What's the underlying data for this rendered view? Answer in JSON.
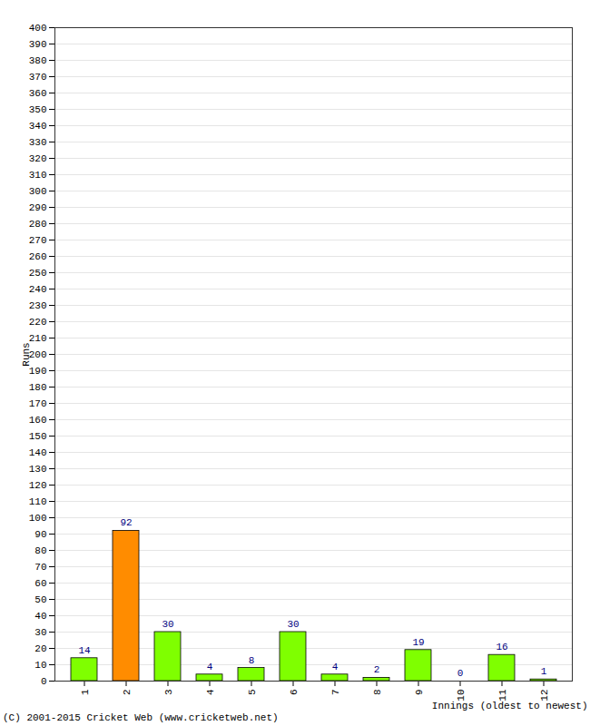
{
  "chart_data": {
    "type": "bar",
    "y_label": "Runs",
    "x_label": "Innings (oldest to newest)",
    "annotations": [
      "(C) 2001-2015 Cricket Web (www.cricketweb.net)"
    ],
    "categories": [
      "1",
      "2",
      "3",
      "4",
      "5",
      "6",
      "7",
      "8",
      "9",
      "10",
      "11",
      "12"
    ],
    "values": [
      14,
      92,
      30,
      4,
      8,
      30,
      4,
      2,
      19,
      0,
      16,
      1
    ],
    "colors": [
      "#7fff00",
      "#ff8c00",
      "#7fff00",
      "#7fff00",
      "#7fff00",
      "#7fff00",
      "#7fff00",
      "#7fff00",
      "#7fff00",
      "#7fff00",
      "#7fff00",
      "#7fff00"
    ],
    "ylim": [
      0,
      400
    ],
    "yticks": [
      0,
      10,
      20,
      30,
      40,
      50,
      60,
      70,
      80,
      90,
      100,
      110,
      120,
      130,
      140,
      150,
      160,
      170,
      180,
      190,
      200,
      210,
      220,
      230,
      240,
      250,
      260,
      270,
      280,
      290,
      300,
      310,
      320,
      330,
      340,
      350,
      360,
      370,
      380,
      390,
      400
    ],
    "grid": true,
    "data_labels": true
  }
}
